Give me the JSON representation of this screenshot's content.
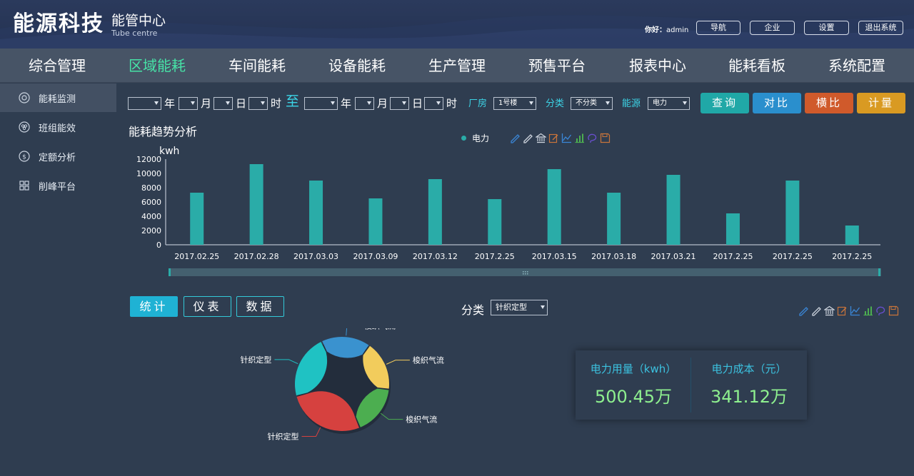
{
  "header": {
    "brand": "能源科技",
    "subtitle_cn": "能管中心",
    "subtitle_en": "Tube centre",
    "user_label": "你好：",
    "user_name": "admin",
    "buttons": [
      "导航",
      "企业",
      "设置",
      "退出系统"
    ]
  },
  "main_nav": {
    "items": [
      "综合管理",
      "区域能耗",
      "车间能耗",
      "设备能耗",
      "生产管理",
      "预售平台",
      "报表中心",
      "能耗看板",
      "系统配置"
    ],
    "active": "区域能耗"
  },
  "sidebar": {
    "items": [
      {
        "label": "能耗监测",
        "icon": "target-icon",
        "active": true
      },
      {
        "label": "班组能效",
        "icon": "cluster-icon",
        "active": false
      },
      {
        "label": "定额分析",
        "icon": "dollar-icon",
        "active": false
      },
      {
        "label": "削峰平台",
        "icon": "grid-icon",
        "active": false
      }
    ]
  },
  "filters": {
    "year": "年",
    "month": "月",
    "day": "日",
    "hour": "时",
    "to": "至",
    "workshop_label": "厂房",
    "workshop_value": "1号楼",
    "category_label": "分类",
    "category_value": "不分类",
    "energy_label": "能源",
    "energy_value": "电力",
    "buttons": [
      {
        "label": "查询",
        "color": "#20a8a7"
      },
      {
        "label": "对比",
        "color": "#2a8fcd"
      },
      {
        "label": "横比",
        "color": "#d05a2b"
      },
      {
        "label": "计量",
        "color": "#d99a22"
      }
    ]
  },
  "chart_data": {
    "type": "bar",
    "title": "能耗趋势分析",
    "ylabel": "kwh",
    "ylim": [
      0,
      12000
    ],
    "yticks": [
      0,
      2000,
      4000,
      6000,
      8000,
      10000,
      12000
    ],
    "categories": [
      "2017.02.25",
      "2017.02.28",
      "2017.03.03",
      "2017.03.09",
      "2017.03.12",
      "2017.2.25",
      "2017.03.15",
      "2017.03.18",
      "2017.03.21",
      "2017.2.25",
      "2017.2.25",
      "2017.2.25"
    ],
    "series": [
      {
        "name": "电力",
        "color": "#2aaca8",
        "values": [
          7300,
          11300,
          9000,
          6500,
          9200,
          6400,
          10600,
          7300,
          9800,
          4400,
          9000,
          2700
        ]
      }
    ],
    "grid": false,
    "legend": "top-center"
  },
  "toolbox_icons": [
    "pencil-icon",
    "pencil-icon",
    "bank-icon",
    "edit-icon",
    "line-chart-icon",
    "bar-chart-icon",
    "lasso-icon",
    "save-icon"
  ],
  "bottom": {
    "tabs": [
      "统计",
      "仪表",
      "数据"
    ],
    "active_tab": "统计",
    "category_label": "分类",
    "category_value": "针织定型"
  },
  "donut": {
    "type": "pie",
    "slices": [
      {
        "label": "梭织气流",
        "value": 17,
        "color": "#3a92cf"
      },
      {
        "label": "梭织气流",
        "value": 17,
        "color": "#f2cc5c"
      },
      {
        "label": "梭织气流",
        "value": 17,
        "color": "#4cae50"
      },
      {
        "label": "针织定型",
        "value": 27,
        "color": "#d6413f"
      },
      {
        "label": "针织定型",
        "value": 22,
        "color": "#1fc2c3"
      }
    ]
  },
  "kpis": [
    {
      "label": "电力用量（kwh）",
      "value": "500.45万"
    },
    {
      "label": "电力成本（元）",
      "value": "341.12万"
    }
  ]
}
